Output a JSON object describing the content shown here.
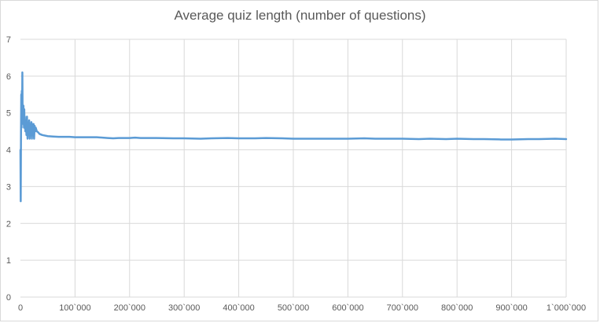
{
  "chart_data": {
    "type": "line",
    "title": "Average quiz length (number of questions)",
    "xlabel": "",
    "ylabel": "",
    "xlim": [
      0,
      1000000
    ],
    "ylim": [
      0,
      7
    ],
    "grid": true,
    "legend": "none",
    "x_ticks": [
      "0",
      "100`000",
      "200`000",
      "300`000",
      "400`000",
      "500`000",
      "600`000",
      "700`000",
      "800`000",
      "900`000",
      "1`000`000"
    ],
    "y_ticks": [
      "0",
      "1",
      "2",
      "3",
      "4",
      "5",
      "6",
      "7"
    ],
    "series": [
      {
        "color": "#5b9bd5",
        "x": [
          0,
          500,
          1000,
          1500,
          2000,
          2500,
          3000,
          3500,
          4000,
          4500,
          5000,
          5500,
          6000,
          6500,
          7000,
          7500,
          8000,
          9000,
          10000,
          11000,
          12000,
          13000,
          14000,
          15000,
          16000,
          17000,
          18000,
          19000,
          20000,
          21000,
          22000,
          23000,
          24000,
          25000,
          26000,
          27000,
          28000,
          29000,
          30000,
          32000,
          35000,
          40000,
          50000,
          60000,
          70000,
          80000,
          90000,
          100000,
          120000,
          140000,
          160000,
          170000,
          180000,
          200000,
          210000,
          220000,
          250000,
          280000,
          300000,
          330000,
          350000,
          380000,
          400000,
          430000,
          450000,
          480000,
          500000,
          530000,
          550000,
          580000,
          600000,
          630000,
          650000,
          680000,
          700000,
          730000,
          750000,
          780000,
          800000,
          830000,
          850000,
          880000,
          900000,
          930000,
          950000,
          980000,
          1000000
        ],
        "y": [
          4.0,
          2.6,
          4.4,
          5.5,
          4.6,
          5.6,
          4.8,
          6.1,
          4.9,
          5.0,
          4.7,
          5.2,
          4.8,
          4.6,
          5.1,
          4.7,
          4.9,
          4.5,
          4.8,
          4.4,
          4.9,
          4.3,
          4.7,
          4.5,
          4.8,
          4.3,
          4.7,
          4.4,
          4.75,
          4.3,
          4.7,
          4.45,
          4.7,
          4.3,
          4.65,
          4.5,
          4.6,
          4.55,
          4.5,
          4.48,
          4.43,
          4.4,
          4.37,
          4.36,
          4.35,
          4.35,
          4.35,
          4.34,
          4.34,
          4.34,
          4.32,
          4.31,
          4.32,
          4.32,
          4.33,
          4.32,
          4.32,
          4.31,
          4.31,
          4.3,
          4.31,
          4.32,
          4.31,
          4.31,
          4.32,
          4.31,
          4.3,
          4.3,
          4.3,
          4.3,
          4.3,
          4.31,
          4.3,
          4.3,
          4.3,
          4.29,
          4.3,
          4.29,
          4.3,
          4.29,
          4.29,
          4.28,
          4.28,
          4.29,
          4.29,
          4.3,
          4.29
        ]
      }
    ]
  }
}
